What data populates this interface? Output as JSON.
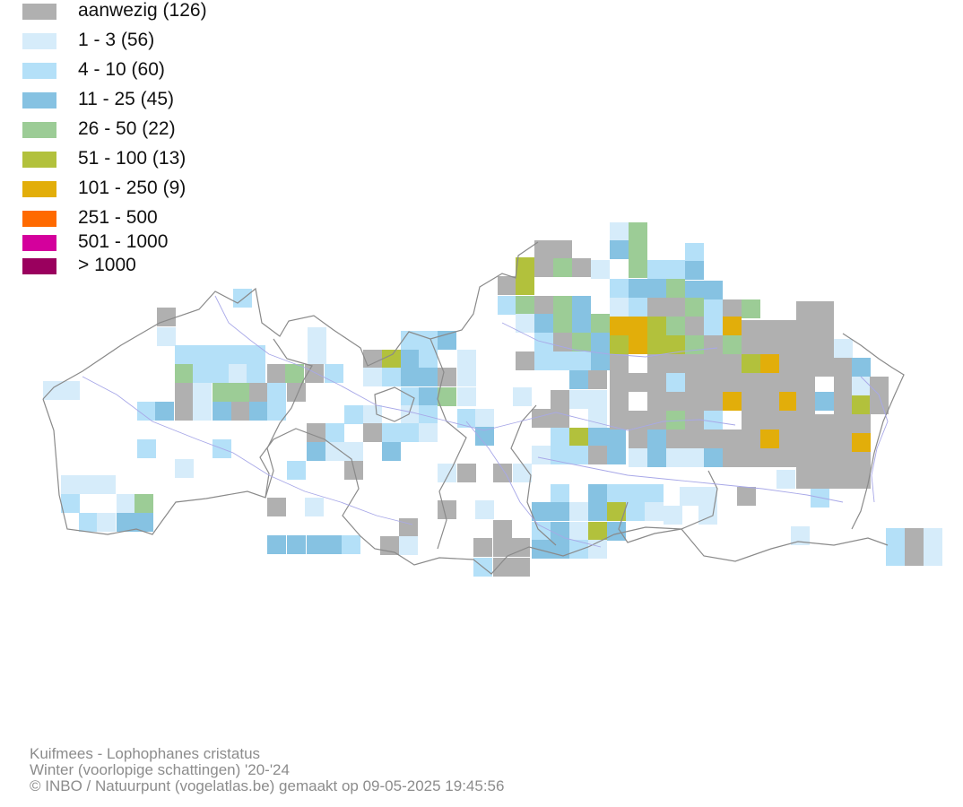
{
  "legend": [
    {
      "label": "aanwezig (126)",
      "color": "#b0b0b0"
    },
    {
      "label": "1 - 3 (56)",
      "color": "#d6ecfa"
    },
    {
      "label": "4 - 10 (60)",
      "color": "#b4e0f8"
    },
    {
      "label": "11 - 25 (45)",
      "color": "#86c2e2"
    },
    {
      "label": "26 - 50 (22)",
      "color": "#9ccc96"
    },
    {
      "label": "51 - 100 (13)",
      "color": "#b2c13c"
    },
    {
      "label": "101 - 250 (9)",
      "color": "#e2ae0a"
    },
    {
      "label": "251 - 500",
      "color": "#ff6a00"
    },
    {
      "label": "501 - 1000",
      "color": "#d4009c"
    },
    {
      "label": "> 1000",
      "color": "#9a005e"
    }
  ],
  "colors": {
    "border": "#8a8a8a",
    "river": "#a8a8e8"
  },
  "footer": {
    "line1": "Kuifmees - Lophophanes cristatus",
    "line2": "Winter (voorlopige schattingen) '20-'24",
    "line3": "© INBO / Natuurpunt (vogelatlas.be) gemaakt op 09-05-2025 19:45:56"
  }
}
